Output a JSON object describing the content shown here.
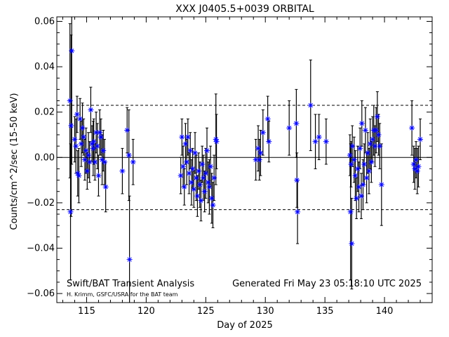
{
  "chart_data": {
    "type": "scatter",
    "title": "XXX J0405.5+0039 ORBITAL",
    "xlabel": "Day of 2025",
    "ylabel": "Counts/cm^2/sec (15-50 keV)",
    "xlim": [
      112.5,
      144.0
    ],
    "ylim": [
      -0.064,
      0.062
    ],
    "xticks": [
      115,
      120,
      125,
      130,
      135,
      140
    ],
    "xtick_labels": [
      "115",
      "120",
      "125",
      "130",
      "135",
      "140"
    ],
    "yticks": [
      -0.06,
      -0.04,
      -0.02,
      0.0,
      0.02,
      0.04,
      0.06
    ],
    "ytick_labels": [
      "−0.06",
      "−0.04",
      "−0.02",
      "0.00",
      "0.02",
      "0.04",
      "0.06"
    ],
    "reference_lines": [
      {
        "y": 0.0,
        "style": "solid"
      },
      {
        "y": 0.023,
        "style": "dashed"
      },
      {
        "y": -0.023,
        "style": "dashed"
      }
    ],
    "marker_color": "#0000ff",
    "errorbar_color": "#000000",
    "points": [
      {
        "x": 113.6,
        "y": 0.025,
        "err": 0.034
      },
      {
        "x": 113.65,
        "y": -0.024,
        "err": 0.03
      },
      {
        "x": 113.7,
        "y": 0.014,
        "err": 0.04
      },
      {
        "x": 113.75,
        "y": 0.047,
        "err": 0.05
      },
      {
        "x": 114.0,
        "y": 0.008,
        "err": 0.01
      },
      {
        "x": 114.1,
        "y": 0.005,
        "err": 0.012
      },
      {
        "x": 114.2,
        "y": 0.019,
        "err": 0.008
      },
      {
        "x": 114.25,
        "y": -0.007,
        "err": 0.01
      },
      {
        "x": 114.35,
        "y": -0.008,
        "err": 0.012
      },
      {
        "x": 114.45,
        "y": 0.017,
        "err": 0.009
      },
      {
        "x": 114.55,
        "y": 0.006,
        "err": 0.01
      },
      {
        "x": 114.65,
        "y": 0.013,
        "err": 0.011
      },
      {
        "x": 114.75,
        "y": 0.009,
        "err": 0.008
      },
      {
        "x": 114.85,
        "y": -0.001,
        "err": 0.009
      },
      {
        "x": 114.95,
        "y": 0.003,
        "err": 0.01
      },
      {
        "x": 115.05,
        "y": -0.006,
        "err": 0.008
      },
      {
        "x": 115.15,
        "y": 0.001,
        "err": 0.01
      },
      {
        "x": 115.25,
        "y": -0.002,
        "err": 0.009
      },
      {
        "x": 115.35,
        "y": 0.021,
        "err": 0.01
      },
      {
        "x": 115.45,
        "y": 0.006,
        "err": 0.008
      },
      {
        "x": 115.55,
        "y": 0.004,
        "err": 0.012
      },
      {
        "x": 115.6,
        "y": 0.007,
        "err": 0.01
      },
      {
        "x": 115.7,
        "y": -0.002,
        "err": 0.008
      },
      {
        "x": 115.8,
        "y": 0.011,
        "err": 0.009
      },
      {
        "x": 115.9,
        "y": 0.005,
        "err": 0.01
      },
      {
        "x": 116.0,
        "y": -0.008,
        "err": 0.009
      },
      {
        "x": 116.1,
        "y": 0.011,
        "err": 0.01
      },
      {
        "x": 116.2,
        "y": 0.009,
        "err": 0.008
      },
      {
        "x": 116.3,
        "y": -0.001,
        "err": 0.011
      },
      {
        "x": 116.4,
        "y": 0.003,
        "err": 0.009
      },
      {
        "x": 116.5,
        "y": -0.002,
        "err": 0.01
      },
      {
        "x": 116.6,
        "y": -0.013,
        "err": 0.011
      },
      {
        "x": 118.0,
        "y": -0.006,
        "err": 0.01
      },
      {
        "x": 118.4,
        "y": 0.012,
        "err": 0.01
      },
      {
        "x": 118.6,
        "y": -0.045,
        "err": 0.028
      },
      {
        "x": 118.55,
        "y": 0.001,
        "err": 0.02
      },
      {
        "x": 118.9,
        "y": -0.002,
        "err": 0.01
      },
      {
        "x": 122.9,
        "y": -0.008,
        "err": 0.008
      },
      {
        "x": 123.0,
        "y": 0.009,
        "err": 0.008
      },
      {
        "x": 123.1,
        "y": -0.004,
        "err": 0.009
      },
      {
        "x": 123.2,
        "y": -0.013,
        "err": 0.008
      },
      {
        "x": 123.3,
        "y": 0.006,
        "err": 0.009
      },
      {
        "x": 123.4,
        "y": -0.002,
        "err": 0.01
      },
      {
        "x": 123.5,
        "y": 0.009,
        "err": 0.008
      },
      {
        "x": 123.6,
        "y": -0.007,
        "err": 0.009
      },
      {
        "x": 123.7,
        "y": 0.003,
        "err": 0.008
      },
      {
        "x": 123.8,
        "y": -0.011,
        "err": 0.01
      },
      {
        "x": 123.9,
        "y": -0.005,
        "err": 0.009
      },
      {
        "x": 124.0,
        "y": -0.014,
        "err": 0.008
      },
      {
        "x": 124.1,
        "y": 0.002,
        "err": 0.009
      },
      {
        "x": 124.2,
        "y": -0.009,
        "err": 0.01
      },
      {
        "x": 124.3,
        "y": -0.017,
        "err": 0.009
      },
      {
        "x": 124.4,
        "y": -0.006,
        "err": 0.008
      },
      {
        "x": 124.5,
        "y": -0.012,
        "err": 0.01
      },
      {
        "x": 124.6,
        "y": -0.019,
        "err": 0.009
      },
      {
        "x": 124.7,
        "y": -0.003,
        "err": 0.008
      },
      {
        "x": 124.8,
        "y": -0.009,
        "err": 0.01
      },
      {
        "x": 124.9,
        "y": -0.015,
        "err": 0.009
      },
      {
        "x": 125.0,
        "y": -0.007,
        "err": 0.011
      },
      {
        "x": 125.1,
        "y": 0.003,
        "err": 0.01
      },
      {
        "x": 125.2,
        "y": -0.011,
        "err": 0.009
      },
      {
        "x": 125.3,
        "y": -0.013,
        "err": 0.012
      },
      {
        "x": 125.4,
        "y": -0.004,
        "err": 0.009
      },
      {
        "x": 125.5,
        "y": -0.018,
        "err": 0.011
      },
      {
        "x": 125.6,
        "y": -0.021,
        "err": 0.01
      },
      {
        "x": 125.7,
        "y": -0.009,
        "err": 0.01
      },
      {
        "x": 125.85,
        "y": 0.008,
        "err": 0.02
      },
      {
        "x": 125.9,
        "y": 0.007,
        "err": 0.012
      },
      {
        "x": 129.2,
        "y": -0.001,
        "err": 0.009
      },
      {
        "x": 129.4,
        "y": 0.004,
        "err": 0.01
      },
      {
        "x": 129.5,
        "y": -0.001,
        "err": 0.009
      },
      {
        "x": 129.6,
        "y": 0.002,
        "err": 0.01
      },
      {
        "x": 129.8,
        "y": 0.011,
        "err": 0.01
      },
      {
        "x": 130.2,
        "y": 0.017,
        "err": 0.01
      },
      {
        "x": 130.3,
        "y": 0.007,
        "err": 0.009
      },
      {
        "x": 132.0,
        "y": 0.013,
        "err": 0.012
      },
      {
        "x": 132.6,
        "y": 0.015,
        "err": 0.015
      },
      {
        "x": 132.65,
        "y": -0.01,
        "err": 0.012
      },
      {
        "x": 132.7,
        "y": -0.024,
        "err": 0.014
      },
      {
        "x": 133.8,
        "y": 0.023,
        "err": 0.02
      },
      {
        "x": 134.2,
        "y": 0.007,
        "err": 0.012
      },
      {
        "x": 134.5,
        "y": 0.009,
        "err": 0.01
      },
      {
        "x": 135.1,
        "y": 0.007,
        "err": 0.01
      },
      {
        "x": 137.1,
        "y": 0.001,
        "err": 0.009
      },
      {
        "x": 137.15,
        "y": -0.024,
        "err": 0.03
      },
      {
        "x": 137.2,
        "y": -0.003,
        "err": 0.01
      },
      {
        "x": 137.25,
        "y": -0.038,
        "err": 0.02
      },
      {
        "x": 137.3,
        "y": 0.005,
        "err": 0.009
      },
      {
        "x": 137.45,
        "y": -0.001,
        "err": 0.01
      },
      {
        "x": 137.55,
        "y": -0.008,
        "err": 0.011
      },
      {
        "x": 137.65,
        "y": -0.018,
        "err": 0.009
      },
      {
        "x": 137.75,
        "y": -0.005,
        "err": 0.01
      },
      {
        "x": 137.85,
        "y": -0.013,
        "err": 0.011
      },
      {
        "x": 137.95,
        "y": 0.004,
        "err": 0.009
      },
      {
        "x": 138.05,
        "y": -0.017,
        "err": 0.01
      },
      {
        "x": 138.1,
        "y": 0.015,
        "err": 0.01
      },
      {
        "x": 138.2,
        "y": -0.012,
        "err": 0.011
      },
      {
        "x": 138.3,
        "y": -0.003,
        "err": 0.009
      },
      {
        "x": 138.4,
        "y": 0.012,
        "err": 0.01
      },
      {
        "x": 138.5,
        "y": -0.009,
        "err": 0.011
      },
      {
        "x": 138.6,
        "y": 0.002,
        "err": 0.009
      },
      {
        "x": 138.7,
        "y": -0.006,
        "err": 0.01
      },
      {
        "x": 138.8,
        "y": 0.006,
        "err": 0.011
      },
      {
        "x": 138.9,
        "y": -0.002,
        "err": 0.009
      },
      {
        "x": 139.0,
        "y": 0.008,
        "err": 0.01
      },
      {
        "x": 139.1,
        "y": 0.012,
        "err": 0.011
      },
      {
        "x": 139.2,
        "y": 0.005,
        "err": 0.009
      },
      {
        "x": 139.3,
        "y": 0.012,
        "err": 0.01
      },
      {
        "x": 139.4,
        "y": 0.018,
        "err": 0.011
      },
      {
        "x": 139.5,
        "y": 0.01,
        "err": 0.009
      },
      {
        "x": 139.6,
        "y": 0.005,
        "err": 0.01
      },
      {
        "x": 139.75,
        "y": -0.012,
        "err": 0.018
      },
      {
        "x": 142.3,
        "y": 0.013,
        "err": 0.012
      },
      {
        "x": 142.45,
        "y": -0.003,
        "err": 0.008
      },
      {
        "x": 142.55,
        "y": -0.005,
        "err": 0.009
      },
      {
        "x": 142.65,
        "y": -0.001,
        "err": 0.008
      },
      {
        "x": 142.75,
        "y": -0.006,
        "err": 0.01
      },
      {
        "x": 142.85,
        "y": -0.004,
        "err": 0.009
      },
      {
        "x": 143.0,
        "y": 0.008,
        "err": 0.009
      }
    ]
  },
  "footer": {
    "left_label": "Swift/BAT Transient Analysis",
    "credit": "H. Krimm, GSFC/USRA for the BAT team",
    "generated": "Generated Fri May 23 05:18:10 UTC 2025"
  }
}
